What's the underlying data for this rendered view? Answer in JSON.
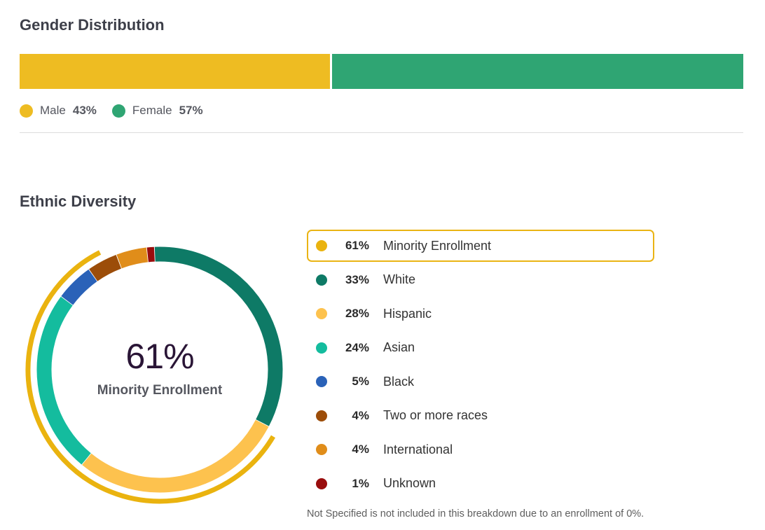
{
  "gender": {
    "title": "Gender Distribution",
    "items": [
      {
        "label": "Male",
        "pct": "43%",
        "value": 43,
        "color": "#eebc22"
      },
      {
        "label": "Female",
        "pct": "57%",
        "value": 57,
        "color": "#2fa573"
      }
    ]
  },
  "ethnic": {
    "title": "Ethnic Diversity",
    "center_pct": "61%",
    "center_label": "Minority Enrollment",
    "legend": [
      {
        "pct": "61%",
        "label": "Minority Enrollment",
        "color": "#eab30f",
        "highlight": true
      },
      {
        "pct": "33%",
        "label": "White",
        "color": "#0e7a66"
      },
      {
        "pct": "28%",
        "label": "Hispanic",
        "color": "#fdc24e"
      },
      {
        "pct": "24%",
        "label": "Asian",
        "color": "#14bc9e"
      },
      {
        "pct": "5%",
        "label": "Black",
        "color": "#2a62b8"
      },
      {
        "pct": "4%",
        "label": "Two or more races",
        "color": "#9c4d09"
      },
      {
        "pct": "4%",
        "label": "International",
        "color": "#e08d1a"
      },
      {
        "pct": "1%",
        "label": "Unknown",
        "color": "#990d0d"
      }
    ],
    "footnote": "Not Specified is not included in this breakdown due to an enrollment of 0%."
  },
  "chart_data": [
    {
      "type": "bar",
      "title": "Gender Distribution",
      "categories": [
        "Male",
        "Female"
      ],
      "values": [
        43,
        57
      ],
      "stacked": true,
      "orientation": "horizontal"
    },
    {
      "type": "pie",
      "title": "Ethnic Diversity",
      "donut": true,
      "center_text": "61% Minority Enrollment",
      "categories": [
        "White",
        "Hispanic",
        "Asian",
        "Black",
        "Two or more races",
        "International",
        "Unknown"
      ],
      "values": [
        33,
        28,
        24,
        5,
        4,
        4,
        1
      ],
      "colors": [
        "#0e7a66",
        "#fdc24e",
        "#14bc9e",
        "#2a62b8",
        "#9c4d09",
        "#e08d1a",
        "#990d0d"
      ],
      "outer_arc": {
        "label": "Minority Enrollment",
        "value": 61,
        "color": "#eab30f"
      }
    }
  ]
}
